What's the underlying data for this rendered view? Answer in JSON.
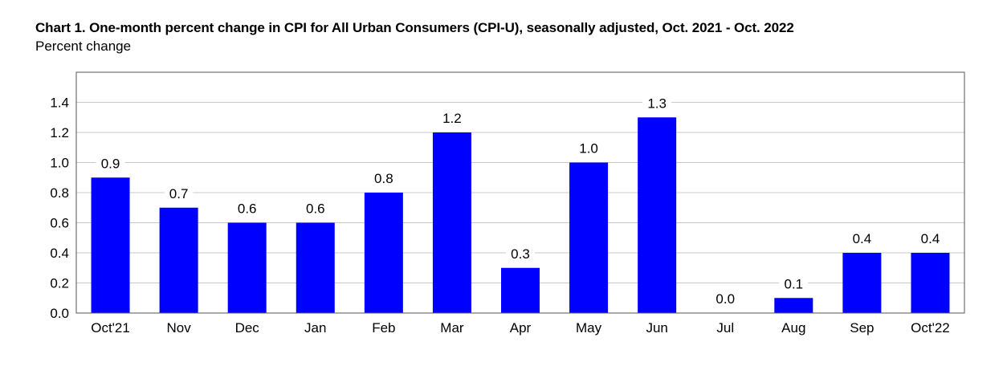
{
  "chart_data": {
    "type": "bar",
    "title": "Chart 1. One-month percent change in CPI for All Urban Consumers (CPI-U), seasonally adjusted, Oct. 2021 - Oct. 2022",
    "subtitle": "Percent change",
    "xlabel": "",
    "ylabel": "",
    "categories": [
      "Oct'21",
      "Nov",
      "Dec",
      "Jan",
      "Feb",
      "Mar",
      "Apr",
      "May",
      "Jun",
      "Jul",
      "Aug",
      "Sep",
      "Oct'22"
    ],
    "values": [
      0.9,
      0.7,
      0.6,
      0.6,
      0.8,
      1.2,
      0.3,
      1.0,
      1.3,
      0.0,
      0.1,
      0.4,
      0.4
    ],
    "data_labels": [
      "0.9",
      "0.7",
      "0.6",
      "0.6",
      "0.8",
      "1.2",
      "0.3",
      "1.0",
      "1.3",
      "0.0",
      "0.1",
      "0.4",
      "0.4"
    ],
    "yticks": [
      0.0,
      0.2,
      0.4,
      0.6,
      0.8,
      1.0,
      1.2,
      1.4
    ],
    "ytick_labels": [
      "0.0",
      "0.2",
      "0.4",
      "0.6",
      "0.8",
      "1.0",
      "1.2",
      "1.4"
    ],
    "ylim": [
      0,
      1.6
    ],
    "grid": true,
    "bar_color": "#0000ff",
    "grid_color": "#c8c8c8"
  }
}
